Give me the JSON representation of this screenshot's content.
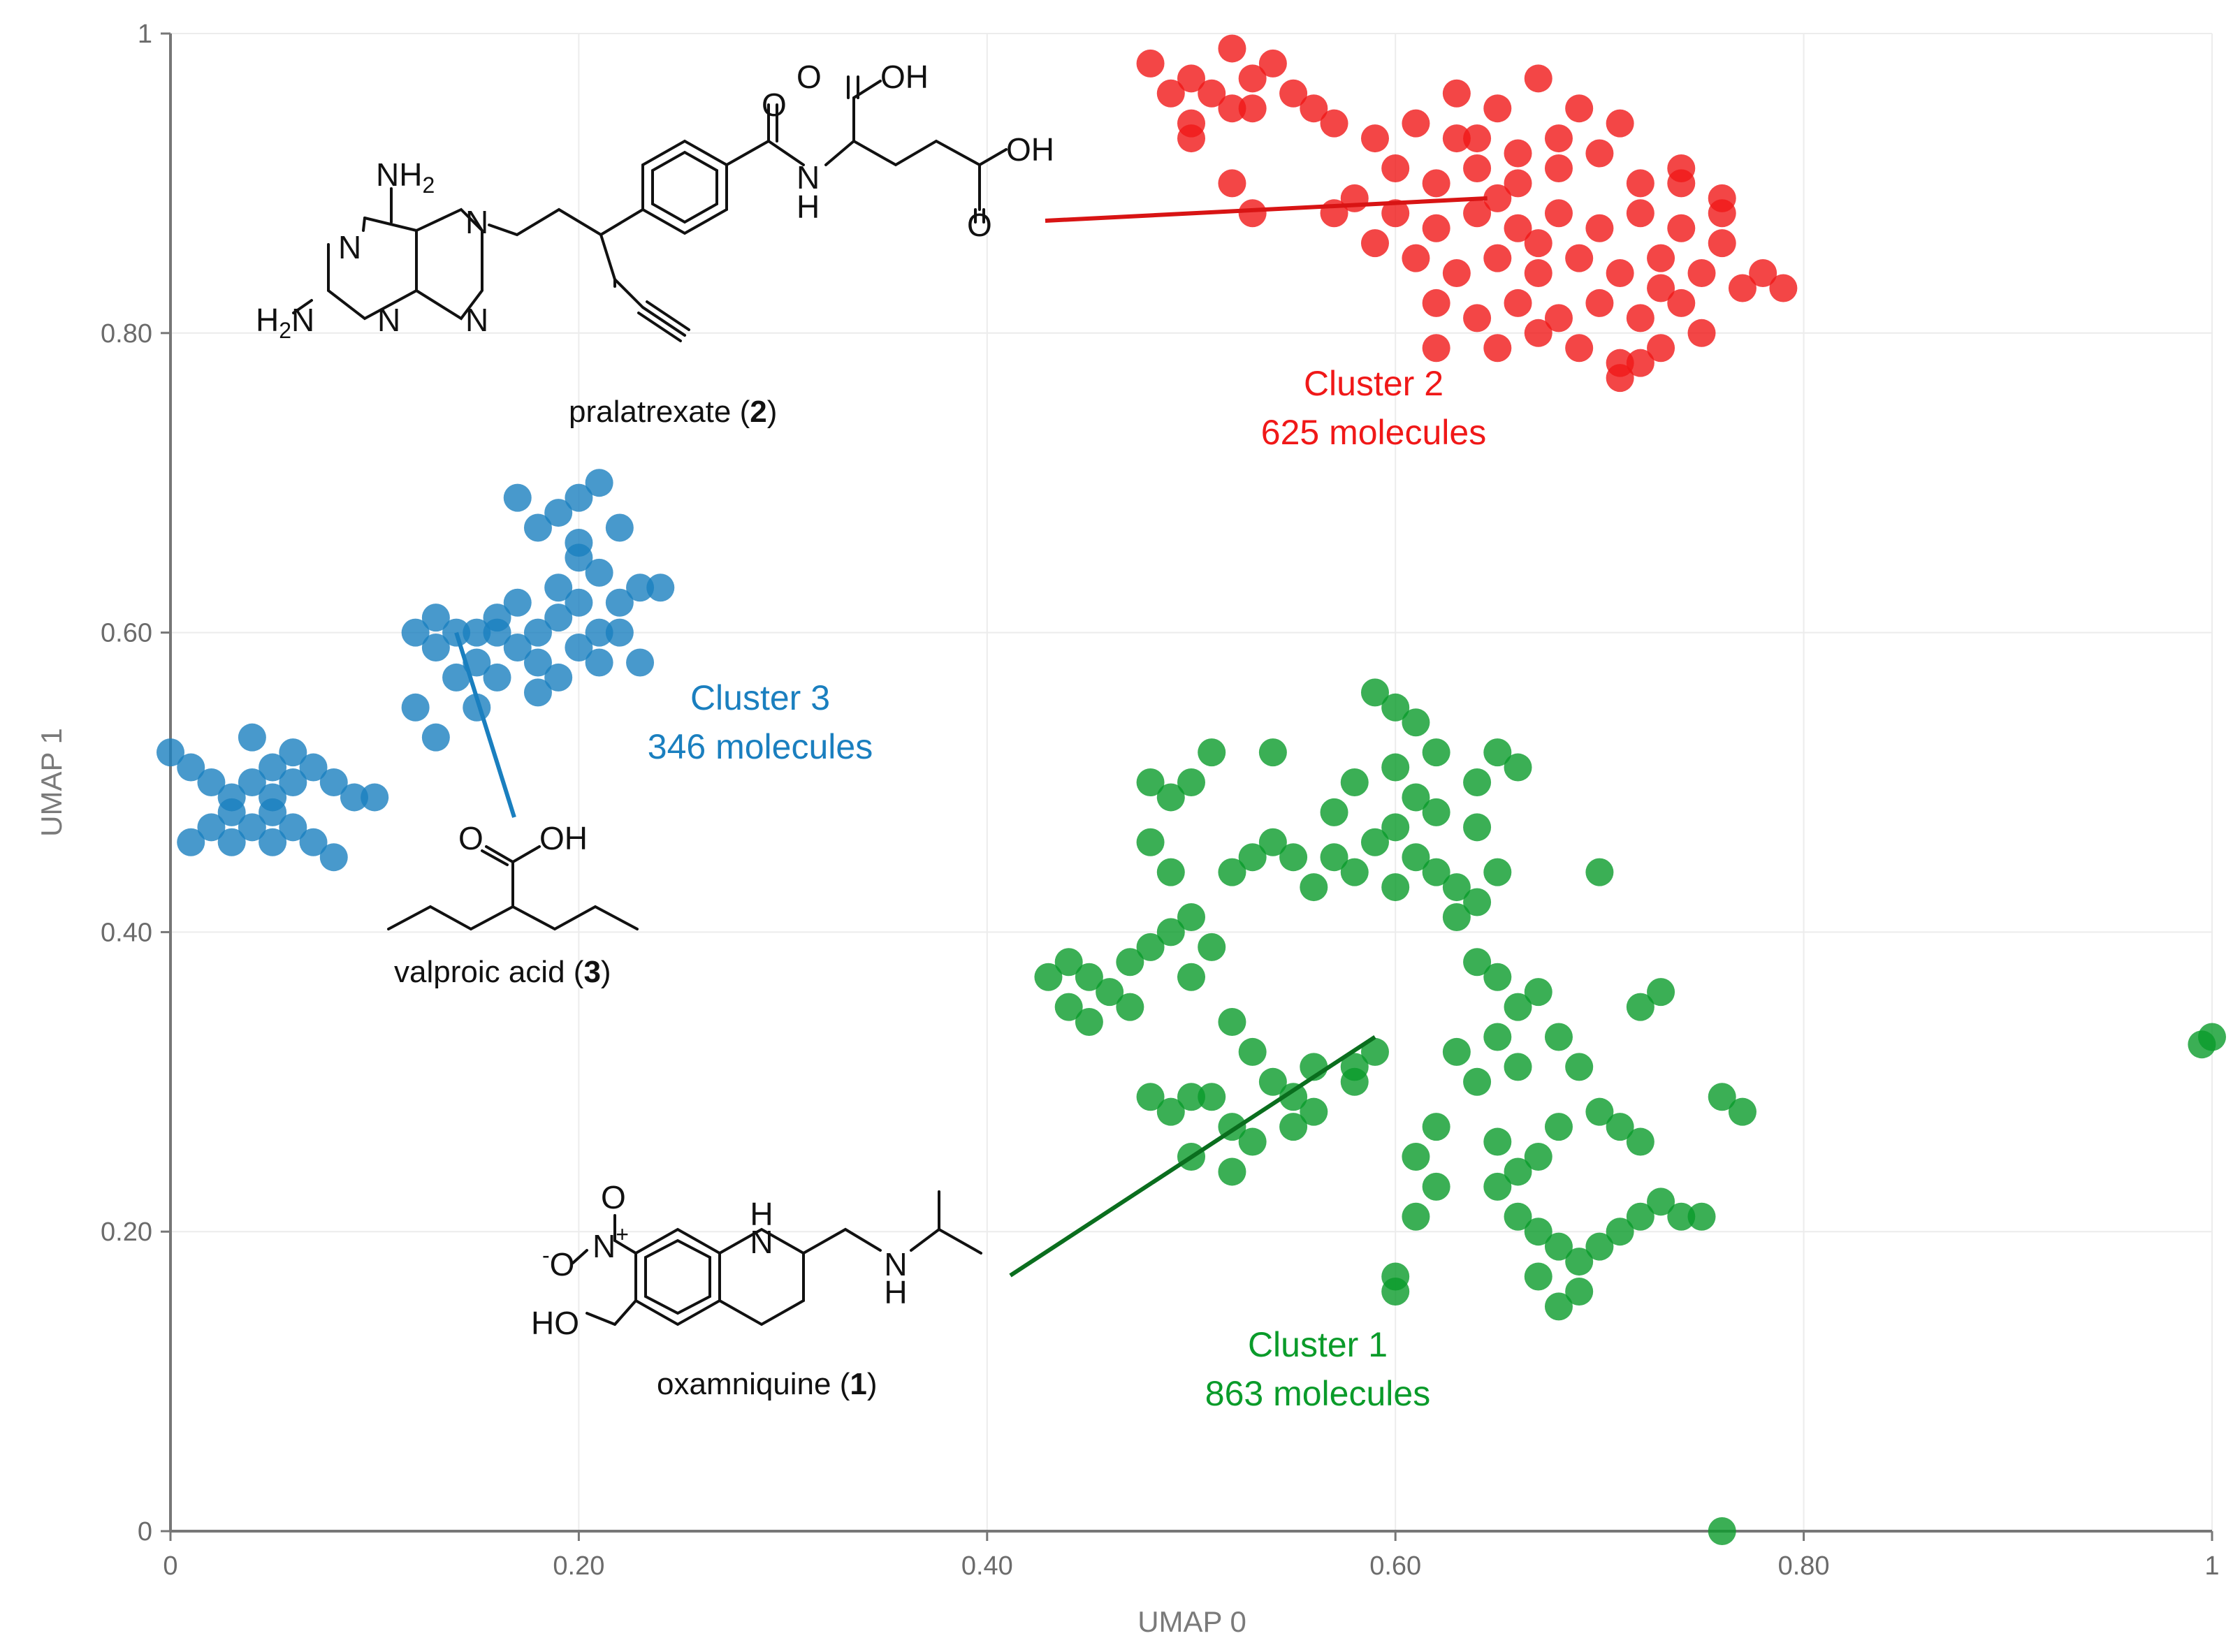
{
  "chart_data": {
    "type": "scatter",
    "xlabel": "UMAP 0",
    "ylabel": "UMAP 1",
    "xlim": [
      0,
      1
    ],
    "ylim": [
      0,
      1
    ],
    "x_ticks": [
      "0",
      "0.20",
      "0.40",
      "0.60",
      "0.80",
      "1"
    ],
    "y_ticks": [
      "0",
      "0.20",
      "0.40",
      "0.60",
      "0.80",
      "1"
    ],
    "grid": true,
    "colors": {
      "cluster1": "#0a9b2a",
      "cluster2": "#f01818",
      "cluster3": "#1a7fbf"
    },
    "annotations": {
      "cluster1": {
        "name": "Cluster 1",
        "count": "863 molecules"
      },
      "cluster2": {
        "name": "Cluster 2",
        "count": "625 molecules"
      },
      "cluster3": {
        "name": "Cluster 3",
        "count": "346 molecules"
      }
    },
    "molecules": {
      "m1": {
        "name": "oxamniquine (",
        "num": "1",
        "close": ")",
        "anchor": [
          0.59,
          0.33
        ]
      },
      "m2": {
        "name": "pralatrexate (",
        "num": "2",
        "close": ")",
        "anchor": [
          0.645,
          0.89
        ]
      },
      "m3": {
        "name": "valproic acid (",
        "num": "3",
        "close": ")",
        "anchor": [
          0.14,
          0.6
        ]
      }
    },
    "atoms": {
      "nh2": "NH",
      "sub2": "2",
      "h2n": "H",
      "n": "N",
      "o": "O",
      "oh": "OH",
      "nh": "N",
      "h": "H",
      "ho": "HO",
      "minus": "-",
      "plus": "+"
    },
    "series": [
      {
        "cluster": 2,
        "points": [
          [
            0.5,
            0.97
          ],
          [
            0.52,
            0.99
          ],
          [
            0.53,
            0.97
          ],
          [
            0.49,
            0.96
          ],
          [
            0.51,
            0.96
          ],
          [
            0.54,
            0.98
          ],
          [
            0.5,
            0.94
          ],
          [
            0.52,
            0.95
          ],
          [
            0.48,
            0.98
          ],
          [
            0.55,
            0.96
          ],
          [
            0.53,
            0.95
          ],
          [
            0.5,
            0.93
          ],
          [
            0.57,
            0.94
          ],
          [
            0.59,
            0.93
          ],
          [
            0.61,
            0.94
          ],
          [
            0.63,
            0.96
          ],
          [
            0.65,
            0.95
          ],
          [
            0.67,
            0.97
          ],
          [
            0.69,
            0.95
          ],
          [
            0.71,
            0.94
          ],
          [
            0.64,
            0.93
          ],
          [
            0.66,
            0.92
          ],
          [
            0.68,
            0.93
          ],
          [
            0.6,
            0.91
          ],
          [
            0.62,
            0.9
          ],
          [
            0.64,
            0.91
          ],
          [
            0.66,
            0.9
          ],
          [
            0.68,
            0.91
          ],
          [
            0.7,
            0.92
          ],
          [
            0.72,
            0.9
          ],
          [
            0.74,
            0.91
          ],
          [
            0.76,
            0.89
          ],
          [
            0.58,
            0.89
          ],
          [
            0.6,
            0.88
          ],
          [
            0.62,
            0.87
          ],
          [
            0.64,
            0.88
          ],
          [
            0.66,
            0.87
          ],
          [
            0.68,
            0.88
          ],
          [
            0.7,
            0.87
          ],
          [
            0.72,
            0.88
          ],
          [
            0.74,
            0.87
          ],
          [
            0.76,
            0.86
          ],
          [
            0.59,
            0.86
          ],
          [
            0.61,
            0.85
          ],
          [
            0.63,
            0.84
          ],
          [
            0.65,
            0.85
          ],
          [
            0.67,
            0.84
          ],
          [
            0.69,
            0.85
          ],
          [
            0.71,
            0.84
          ],
          [
            0.73,
            0.85
          ],
          [
            0.75,
            0.84
          ],
          [
            0.77,
            0.83
          ],
          [
            0.62,
            0.82
          ],
          [
            0.64,
            0.81
          ],
          [
            0.66,
            0.82
          ],
          [
            0.68,
            0.81
          ],
          [
            0.7,
            0.82
          ],
          [
            0.72,
            0.81
          ],
          [
            0.74,
            0.82
          ],
          [
            0.65,
            0.79
          ],
          [
            0.67,
            0.8
          ],
          [
            0.69,
            0.79
          ],
          [
            0.71,
            0.78
          ],
          [
            0.73,
            0.79
          ],
          [
            0.75,
            0.8
          ],
          [
            0.71,
            0.77
          ],
          [
            0.72,
            0.78
          ],
          [
            0.62,
            0.79
          ],
          [
            0.57,
            0.88
          ],
          [
            0.53,
            0.88
          ],
          [
            0.52,
            0.9
          ],
          [
            0.56,
            0.95
          ],
          [
            0.74,
            0.9
          ],
          [
            0.76,
            0.88
          ],
          [
            0.78,
            0.84
          ],
          [
            0.79,
            0.83
          ],
          [
            0.73,
            0.83
          ],
          [
            0.67,
            0.86
          ],
          [
            0.63,
            0.93
          ],
          [
            0.65,
            0.89
          ]
        ]
      },
      {
        "cluster": 3,
        "points": [
          [
            0.0,
            0.52
          ],
          [
            0.01,
            0.51
          ],
          [
            0.02,
            0.5
          ],
          [
            0.03,
            0.49
          ],
          [
            0.04,
            0.5
          ],
          [
            0.05,
            0.51
          ],
          [
            0.06,
            0.52
          ],
          [
            0.07,
            0.51
          ],
          [
            0.08,
            0.5
          ],
          [
            0.09,
            0.49
          ],
          [
            0.1,
            0.49
          ],
          [
            0.02,
            0.47
          ],
          [
            0.03,
            0.46
          ],
          [
            0.04,
            0.47
          ],
          [
            0.05,
            0.48
          ],
          [
            0.06,
            0.47
          ],
          [
            0.07,
            0.46
          ],
          [
            0.08,
            0.45
          ],
          [
            0.04,
            0.53
          ],
          [
            0.05,
            0.49
          ],
          [
            0.06,
            0.5
          ],
          [
            0.03,
            0.48
          ],
          [
            0.01,
            0.46
          ],
          [
            0.05,
            0.46
          ],
          [
            0.12,
            0.6
          ],
          [
            0.13,
            0.61
          ],
          [
            0.14,
            0.6
          ],
          [
            0.13,
            0.59
          ],
          [
            0.15,
            0.58
          ],
          [
            0.14,
            0.57
          ],
          [
            0.12,
            0.55
          ],
          [
            0.13,
            0.53
          ],
          [
            0.15,
            0.55
          ],
          [
            0.16,
            0.57
          ],
          [
            0.17,
            0.59
          ],
          [
            0.18,
            0.6
          ],
          [
            0.19,
            0.61
          ],
          [
            0.2,
            0.62
          ],
          [
            0.21,
            0.6
          ],
          [
            0.22,
            0.62
          ],
          [
            0.18,
            0.58
          ],
          [
            0.19,
            0.57
          ],
          [
            0.2,
            0.59
          ],
          [
            0.21,
            0.58
          ],
          [
            0.17,
            0.62
          ],
          [
            0.16,
            0.61
          ],
          [
            0.23,
            0.63
          ],
          [
            0.22,
            0.6
          ],
          [
            0.23,
            0.58
          ],
          [
            0.24,
            0.63
          ],
          [
            0.21,
            0.64
          ],
          [
            0.2,
            0.66
          ],
          [
            0.2,
            0.69
          ],
          [
            0.21,
            0.7
          ],
          [
            0.19,
            0.68
          ],
          [
            0.17,
            0.69
          ],
          [
            0.18,
            0.67
          ],
          [
            0.15,
            0.6
          ],
          [
            0.16,
            0.6
          ],
          [
            0.19,
            0.63
          ],
          [
            0.18,
            0.56
          ],
          [
            0.2,
            0.65
          ],
          [
            0.22,
            0.67
          ]
        ]
      },
      {
        "cluster": 1,
        "points": [
          [
            0.59,
            0.56
          ],
          [
            0.6,
            0.55
          ],
          [
            0.61,
            0.54
          ],
          [
            0.62,
            0.52
          ],
          [
            0.6,
            0.51
          ],
          [
            0.61,
            0.49
          ],
          [
            0.62,
            0.48
          ],
          [
            0.6,
            0.47
          ],
          [
            0.59,
            0.46
          ],
          [
            0.61,
            0.45
          ],
          [
            0.62,
            0.44
          ],
          [
            0.63,
            0.43
          ],
          [
            0.6,
            0.43
          ],
          [
            0.58,
            0.44
          ],
          [
            0.57,
            0.45
          ],
          [
            0.56,
            0.43
          ],
          [
            0.55,
            0.45
          ],
          [
            0.54,
            0.46
          ],
          [
            0.53,
            0.45
          ],
          [
            0.58,
            0.5
          ],
          [
            0.57,
            0.48
          ],
          [
            0.64,
            0.5
          ],
          [
            0.65,
            0.52
          ],
          [
            0.66,
            0.51
          ],
          [
            0.64,
            0.47
          ],
          [
            0.65,
            0.44
          ],
          [
            0.64,
            0.42
          ],
          [
            0.63,
            0.41
          ],
          [
            0.64,
            0.38
          ],
          [
            0.65,
            0.37
          ],
          [
            0.66,
            0.35
          ],
          [
            0.67,
            0.36
          ],
          [
            0.65,
            0.33
          ],
          [
            0.66,
            0.31
          ],
          [
            0.64,
            0.3
          ],
          [
            0.63,
            0.32
          ],
          [
            0.68,
            0.33
          ],
          [
            0.69,
            0.31
          ],
          [
            0.7,
            0.28
          ],
          [
            0.71,
            0.27
          ],
          [
            0.72,
            0.26
          ],
          [
            0.68,
            0.27
          ],
          [
            0.67,
            0.25
          ],
          [
            0.66,
            0.24
          ],
          [
            0.65,
            0.23
          ],
          [
            0.66,
            0.21
          ],
          [
            0.67,
            0.2
          ],
          [
            0.68,
            0.19
          ],
          [
            0.69,
            0.18
          ],
          [
            0.7,
            0.19
          ],
          [
            0.71,
            0.2
          ],
          [
            0.72,
            0.21
          ],
          [
            0.73,
            0.22
          ],
          [
            0.74,
            0.21
          ],
          [
            0.75,
            0.21
          ],
          [
            0.69,
            0.16
          ],
          [
            0.68,
            0.15
          ],
          [
            0.67,
            0.17
          ],
          [
            0.65,
            0.26
          ],
          [
            0.61,
            0.25
          ],
          [
            0.62,
            0.23
          ],
          [
            0.61,
            0.21
          ],
          [
            0.62,
            0.27
          ],
          [
            0.6,
            0.16
          ],
          [
            0.6,
            0.17
          ],
          [
            0.58,
            0.3
          ],
          [
            0.59,
            0.32
          ],
          [
            0.56,
            0.31
          ],
          [
            0.55,
            0.29
          ],
          [
            0.54,
            0.3
          ],
          [
            0.53,
            0.32
          ],
          [
            0.52,
            0.34
          ],
          [
            0.53,
            0.26
          ],
          [
            0.52,
            0.27
          ],
          [
            0.52,
            0.24
          ],
          [
            0.51,
            0.29
          ],
          [
            0.5,
            0.29
          ],
          [
            0.49,
            0.28
          ],
          [
            0.48,
            0.29
          ],
          [
            0.5,
            0.25
          ],
          [
            0.5,
            0.37
          ],
          [
            0.51,
            0.39
          ],
          [
            0.5,
            0.41
          ],
          [
            0.49,
            0.4
          ],
          [
            0.48,
            0.39
          ],
          [
            0.49,
            0.44
          ],
          [
            0.48,
            0.46
          ],
          [
            0.49,
            0.49
          ],
          [
            0.5,
            0.5
          ],
          [
            0.51,
            0.52
          ],
          [
            0.48,
            0.5
          ],
          [
            0.43,
            0.37
          ],
          [
            0.44,
            0.38
          ],
          [
            0.45,
            0.37
          ],
          [
            0.46,
            0.36
          ],
          [
            0.47,
            0.35
          ],
          [
            0.45,
            0.34
          ],
          [
            0.44,
            0.35
          ],
          [
            0.47,
            0.38
          ],
          [
            0.54,
            0.52
          ],
          [
            0.52,
            0.44
          ],
          [
            0.58,
            0.31
          ],
          [
            0.56,
            0.28
          ],
          [
            0.55,
            0.27
          ],
          [
            0.72,
            0.35
          ],
          [
            0.73,
            0.36
          ],
          [
            0.76,
            0.29
          ],
          [
            0.77,
            0.28
          ],
          [
            0.7,
            0.44
          ],
          [
            0.76,
            0.0
          ],
          [
            0.995,
            0.325
          ],
          [
            1.0,
            0.33
          ]
        ]
      }
    ]
  }
}
